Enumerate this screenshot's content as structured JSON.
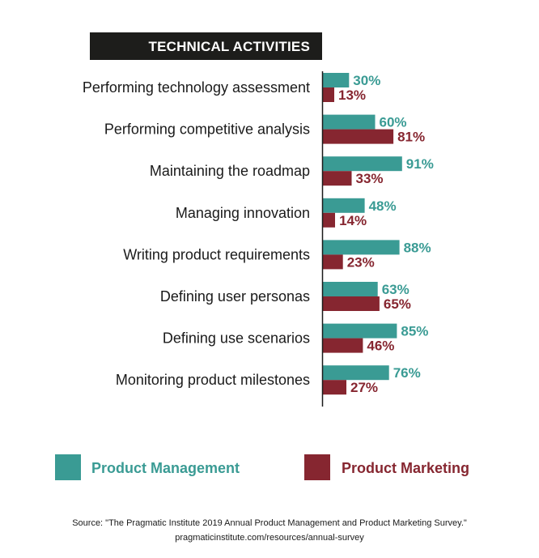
{
  "chart_data": {
    "type": "bar",
    "title": "TECHNICAL ACTIVITIES",
    "categories": [
      "Performing technology assessment",
      "Performing competitive analysis",
      "Maintaining the roadmap",
      "Managing innovation",
      "Writing product requirements",
      "Defining user personas",
      "Defining use scenarios",
      "Monitoring product milestones"
    ],
    "series": [
      {
        "name": "Product Management",
        "values": [
          30,
          60,
          91,
          48,
          88,
          63,
          85,
          76
        ],
        "color": "#3a9b94"
      },
      {
        "name": "Product Marketing",
        "values": [
          13,
          81,
          33,
          14,
          23,
          65,
          46,
          27
        ],
        "color": "#862630"
      }
    ],
    "value_suffix": "%",
    "xlim": [
      0,
      100
    ],
    "orientation": "horizontal",
    "legend_position": "bottom",
    "grid": false
  },
  "source": {
    "line1": "Source: \"The Pragmatic Institute 2019 Annual Product Management and Product Marketing Survey.\"",
    "line2": "pragmaticinstitute.com/resources/annual-survey"
  }
}
